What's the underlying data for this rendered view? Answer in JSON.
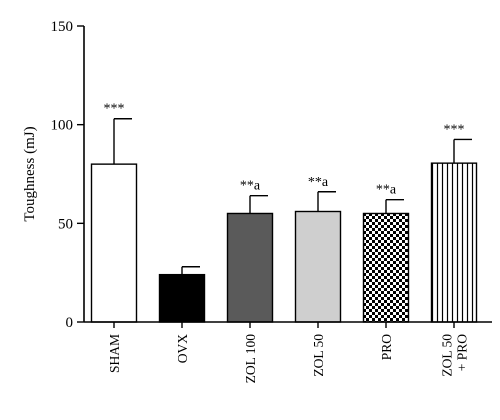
{
  "chart_data": {
    "type": "bar",
    "title": "",
    "xlabel": "",
    "ylabel": "Toughness (mJ)",
    "ylim": [
      0,
      150
    ],
    "yticks": [
      "0",
      "50",
      "100",
      "150"
    ],
    "grid": false,
    "legend": "none",
    "categories": [
      {
        "lines": [
          "SHAM"
        ]
      },
      {
        "lines": [
          "OVX"
        ]
      },
      {
        "lines": [
          "ZOL 100"
        ]
      },
      {
        "lines": [
          "ZOL 50"
        ]
      },
      {
        "lines": [
          "PRO"
        ]
      },
      {
        "lines": [
          "ZOL 50",
          "+ PRO"
        ]
      }
    ],
    "values": [
      80,
      24,
      55,
      56,
      55,
      80.5
    ],
    "errors": [
      23,
      4,
      9,
      10,
      7,
      12
    ],
    "annotations": [
      "***",
      "",
      "**a",
      "**a",
      "**a",
      "***"
    ],
    "fills": [
      "white",
      "black",
      "dark-gray",
      "light-gray",
      "checkerboard",
      "vertical-stripes"
    ],
    "colors": {
      "black": "#000000",
      "dark_gray": "#5a5a5a",
      "light_gray": "#cfcfcf",
      "white": "#ffffff"
    }
  }
}
